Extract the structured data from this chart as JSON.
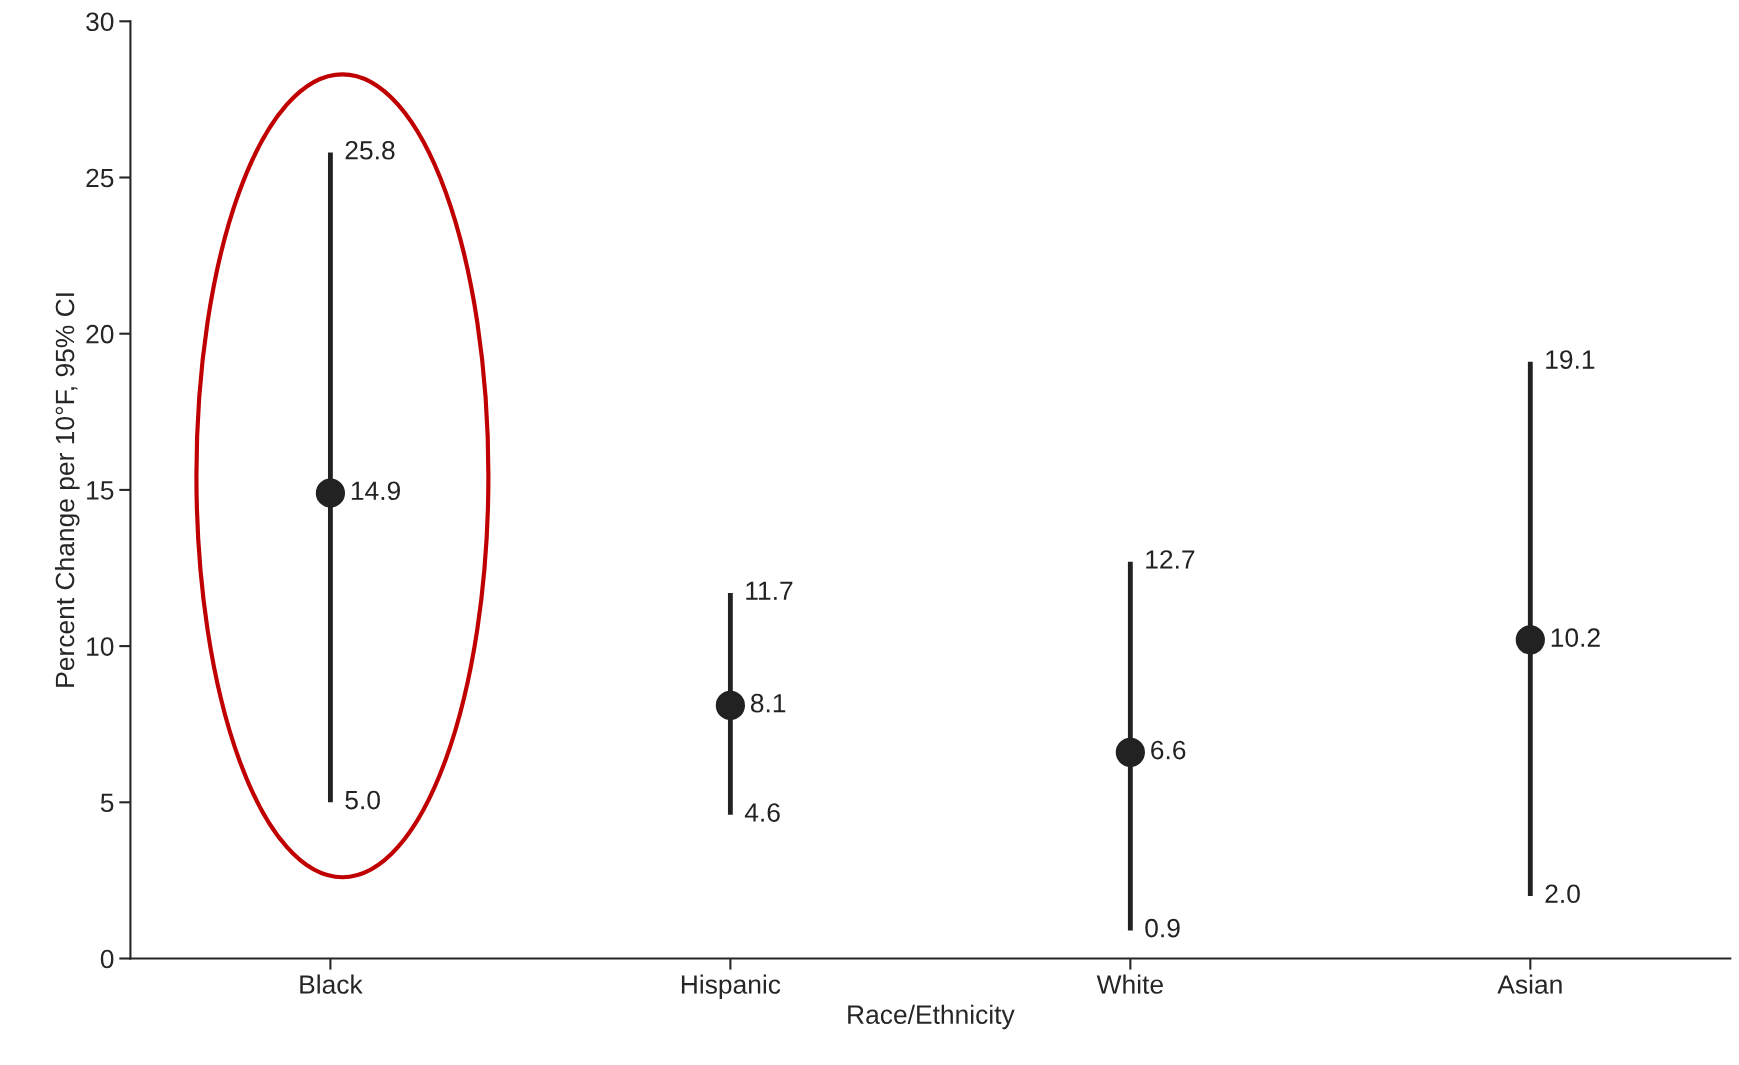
{
  "chart_data": {
    "type": "scatter",
    "xlabel": "Race/Ethnicity",
    "ylabel": "Percent Change per 10°F, 95% CI",
    "categories": [
      "Black",
      "Hispanic",
      "White",
      "Asian"
    ],
    "values": [
      14.9,
      8.1,
      6.6,
      10.2
    ],
    "value_labels": [
      "14.9",
      "8.1",
      "6.6",
      "10.2"
    ],
    "errors": [
      [
        5.0,
        25.8
      ],
      [
        4.6,
        11.7
      ],
      [
        0.9,
        12.7
      ],
      [
        2.0,
        19.1
      ]
    ],
    "color": "#222222",
    "marker": "circle",
    "ylim": [
      0,
      30
    ],
    "yticks": [
      0,
      5,
      10,
      15,
      20,
      25,
      30
    ],
    "grid": false,
    "annotations": [
      {
        "text": "25.8",
        "x": "Black",
        "y": 25.8
      },
      {
        "text": "5.0",
        "x": "Black",
        "y": 5.0
      },
      {
        "text": "11.7",
        "x": "Hispanic",
        "y": 11.7
      },
      {
        "text": "4.6",
        "x": "Hispanic",
        "y": 4.6
      },
      {
        "text": "12.7",
        "x": "White",
        "y": 12.7
      },
      {
        "text": "0.9",
        "x": "White",
        "y": 0.9
      },
      {
        "text": "19.1",
        "x": "Asian",
        "y": 19.1
      },
      {
        "text": "2.0",
        "x": "Asian",
        "y": 2.0
      }
    ]
  }
}
